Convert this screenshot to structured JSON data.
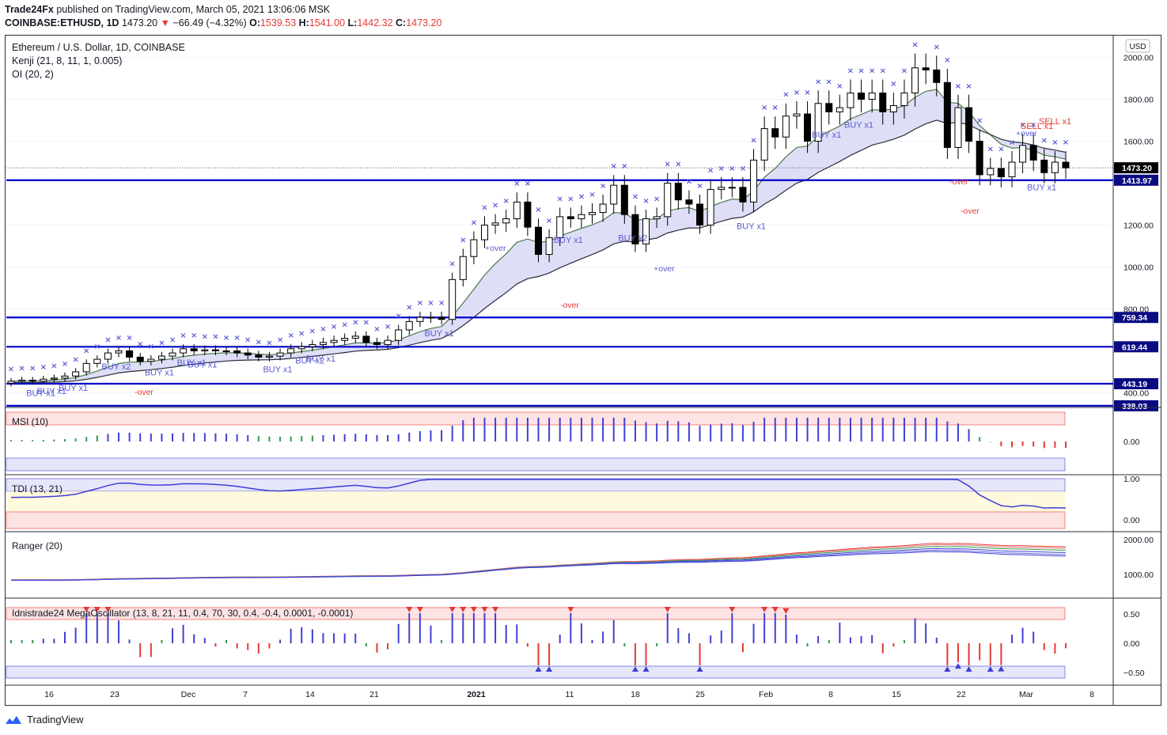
{
  "header": {
    "publisher_line": {
      "author": "Trade24Fx",
      "text": " published on TradingView.com, March 05, 2021 13:06:06 MSK"
    },
    "symbol_line": {
      "symbol": "COINBASE:ETHUSD, 1D",
      "last": "1473.20",
      "change": "−66.49 (−4.32%)",
      "open_label": "O:",
      "open": "1539.53",
      "high_label": "H:",
      "high": "1541.00",
      "low_label": "L:",
      "low": "1442.32",
      "close_label": "C:",
      "close": "1473.20"
    }
  },
  "colors": {
    "up_candle": "#ffffff",
    "down_candle": "#000000",
    "level_line": "#0000cc",
    "cross_marker": "#5a5ad6",
    "buy_text": "#5a5ad6",
    "sell_text": "#e53935",
    "cloud": "#d6d6f5",
    "hist_blue": "#3f3fd6",
    "hist_red": "#e53935",
    "hist_green": "#2e9c4a"
  },
  "chart_data": [
    {
      "type": "candlestick",
      "title": "Ethereum / U.S. Dollar, 1D, COINBASE",
      "indicator_labels": [
        "Kenji (21, 8, 11, 1, 0.005)",
        "OI (20, 2)"
      ],
      "currency_label": "USD",
      "ylim": [
        330,
        2100
      ],
      "yticks": [
        2000,
        1800,
        1600,
        1200,
        1000,
        800,
        400
      ],
      "ytick_labels": [
        "2000.00",
        "1800.00",
        "1600.00",
        "1200.00",
        "1000.00",
        "800.00",
        "400.00"
      ],
      "levels": [
        {
          "value": 1413.97,
          "label": "1413.97"
        },
        {
          "value": 759.34,
          "label": "759.34"
        },
        {
          "value": 619.44,
          "label": "619.44"
        },
        {
          "value": 443.19,
          "label": "443.19"
        },
        {
          "value": 338.03,
          "label": "338.03"
        }
      ],
      "last_price": {
        "value": 1473.2,
        "label": "1473.20"
      },
      "closes": [
        455,
        460,
        455,
        465,
        470,
        480,
        500,
        540,
        560,
        590,
        600,
        570,
        550,
        560,
        575,
        590,
        610,
        600,
        605,
        600,
        600,
        590,
        580,
        570,
        575,
        590,
        610,
        620,
        630,
        640,
        650,
        660,
        670,
        640,
        630,
        650,
        700,
        740,
        760,
        760,
        750,
        940,
        1050,
        1130,
        1200,
        1210,
        1230,
        1310,
        1190,
        1060,
        1140,
        1240,
        1230,
        1250,
        1260,
        1300,
        1390,
        1250,
        1110,
        1230,
        1240,
        1400,
        1320,
        1300,
        1200,
        1370,
        1380,
        1380,
        1310,
        1510,
        1660,
        1620,
        1720,
        1730,
        1600,
        1780,
        1740,
        1760,
        1830,
        1800,
        1830,
        1740,
        1770,
        1830,
        1950,
        1940,
        1880,
        1570,
        1760,
        1600,
        1440,
        1470,
        1430,
        1500,
        1580,
        1510,
        1450,
        1500,
        1473
      ],
      "signals": [
        {
          "i": 7,
          "text": "BUY x1"
        },
        {
          "i": 13,
          "text": "BUY x1"
        },
        {
          "i": 23,
          "text": "BUY x1"
        },
        {
          "i": 38,
          "text": "BUY x2"
        },
        {
          "i": 59,
          "text": "BUY x1"
        },
        {
          "i": 71,
          "text": "BUY x1"
        },
        {
          "i": 74,
          "text": "BUY x1"
        },
        {
          "i": 104,
          "text": "BUY x1"
        },
        {
          "i": 117,
          "text": "BUY x2"
        },
        {
          "i": 122,
          "text": "BUY x1"
        },
        {
          "i": 173,
          "text": "BUY x1"
        },
        {
          "i": 224,
          "text": "BUY x1"
        },
        {
          "i": 251,
          "text": "BUY x2"
        },
        {
          "i": 299,
          "text": "BUY x1"
        },
        {
          "i": 328,
          "text": "BUY x1"
        },
        {
          "i": 344,
          "text": "BUY x1"
        },
        {
          "i": 418,
          "text": "BUY x1"
        }
      ],
      "sell_signals": [
        {
          "text": "SELL x1"
        },
        {
          "text": "SELL x1"
        }
      ],
      "over_labels": [
        "+over",
        "-over",
        "+over",
        "-over",
        "-over",
        "-over",
        "+over"
      ],
      "xtick_labels": [
        "16",
        "23",
        "Dec",
        "7",
        "14",
        "21",
        "2021",
        "11",
        "18",
        "25",
        "Feb",
        "8",
        "15",
        "22",
        "Mar",
        "8"
      ]
    },
    {
      "type": "bar",
      "title": "MSI (10)",
      "ytick_labels": [
        "0.00"
      ],
      "ylim": [
        -1,
        1
      ]
    },
    {
      "type": "line",
      "title": "TDI (13, 21)",
      "ytick_labels": [
        "1.00",
        "0.00"
      ],
      "ylim": [
        0,
        1
      ]
    },
    {
      "type": "line",
      "title": "Ranger (20)",
      "ytick_labels": [
        "2000.00",
        "1000.00"
      ],
      "ylim": [
        0,
        2000
      ]
    },
    {
      "type": "bar",
      "title": "Idnistrade24 MegaOscillator (13, 8, 21, 11, 0.4, 70, 30, 0.4, -0.4, 0.0001, -0.0001)",
      "ytick_labels": [
        "0.50",
        "0.00",
        "−0.50"
      ],
      "ylim": [
        -0.6,
        0.6
      ]
    }
  ],
  "footer": {
    "brand": "TradingView"
  }
}
